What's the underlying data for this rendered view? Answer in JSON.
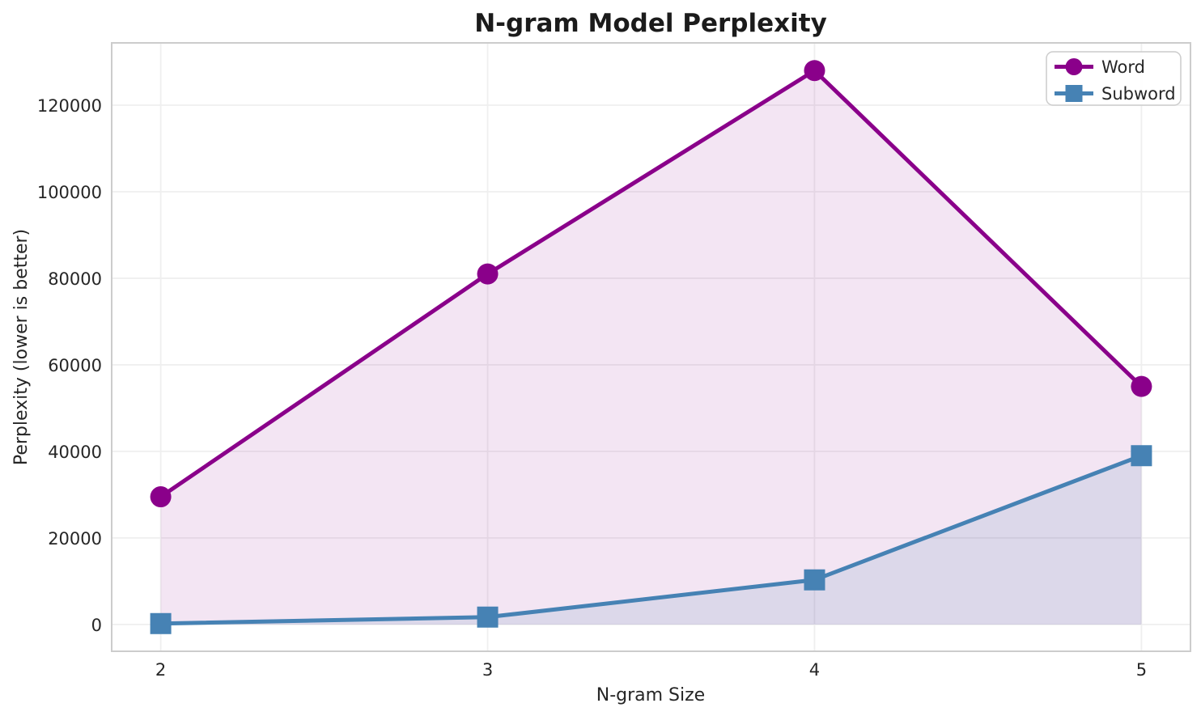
{
  "chart_data": {
    "type": "line",
    "title": "N-gram Model Perplexity",
    "xlabel": "N-gram Size",
    "ylabel": "Perplexity (lower is better)",
    "x": [
      2,
      3,
      4,
      5
    ],
    "x_tick_labels": [
      "2",
      "3",
      "4",
      "5"
    ],
    "y_ticks": [
      0,
      20000,
      40000,
      60000,
      80000,
      100000,
      120000
    ],
    "y_tick_labels": [
      "0",
      "20000",
      "40000",
      "60000",
      "80000",
      "100000",
      "120000"
    ],
    "xlim": [
      1.85,
      5.15
    ],
    "ylim": [
      -6200,
      134400
    ],
    "grid": true,
    "fill_baseline": 0,
    "legend": {
      "position": "upper right",
      "entries": [
        "Word",
        "Subword"
      ]
    },
    "series": [
      {
        "name": "Word",
        "marker": "circle",
        "color": "#8A008A",
        "fill_opacity": 0.1,
        "values": [
          29500,
          81000,
          128000,
          55000
        ]
      },
      {
        "name": "Subword",
        "marker": "square",
        "color": "#4682B4",
        "fill_opacity": 0.13,
        "values": [
          200,
          1700,
          10300,
          39000
        ]
      }
    ],
    "styles": {
      "grid_color": "#efefef",
      "spine_color": "#cccccc",
      "text_color": "#262626",
      "title_color": "#1b1b1b",
      "background": "#ffffff"
    }
  }
}
